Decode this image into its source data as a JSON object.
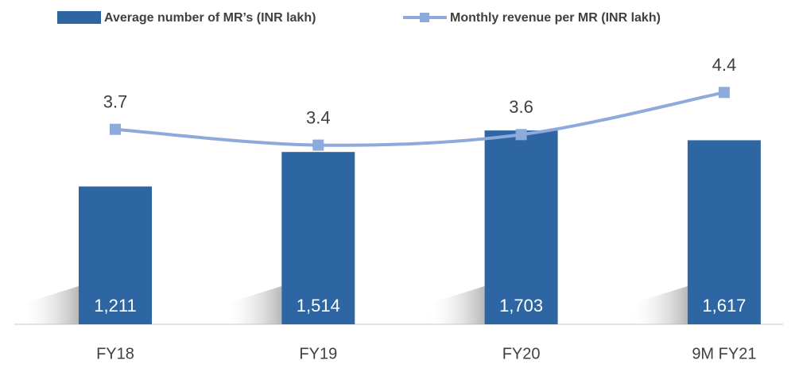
{
  "chart_data": {
    "type": "bar+line",
    "categories": [
      "FY18",
      "FY19",
      "FY20",
      "9M FY21"
    ],
    "series": [
      {
        "name": "Average number of MR’s (INR lakh)",
        "type": "bar",
        "color": "#2e66a3",
        "values": [
          1211,
          1514,
          1703,
          1617
        ],
        "value_labels": [
          "1,211",
          "1,514",
          "1,703",
          "1,617"
        ]
      },
      {
        "name": "Monthly revenue per MR (INR lakh)",
        "type": "line",
        "axis": "y2",
        "color": "#8eaadb",
        "values": [
          3.7,
          3.4,
          3.6,
          4.4
        ]
      }
    ],
    "ylim": [
      0,
      2500
    ],
    "y2lim": [
      0,
      5.4
    ],
    "grid": false
  }
}
